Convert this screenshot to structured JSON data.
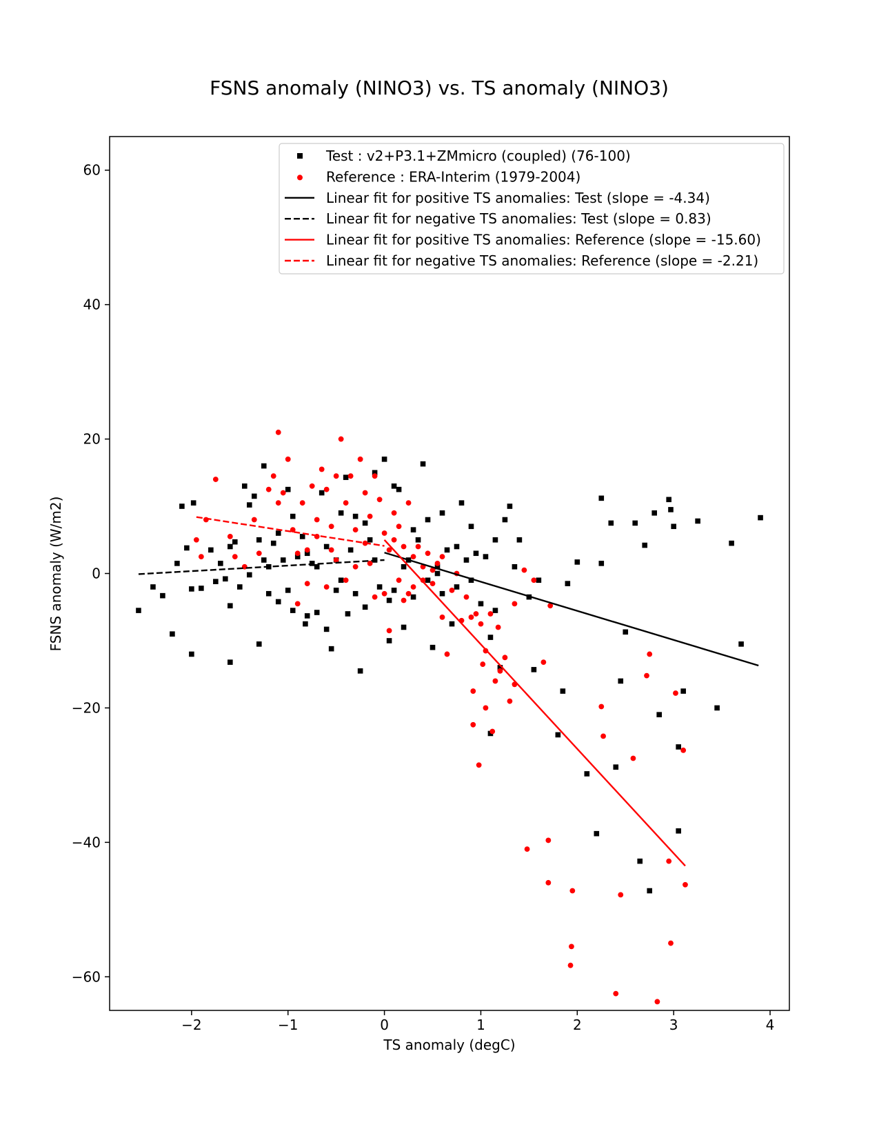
{
  "chart_data": {
    "type": "scatter",
    "title": "FSNS anomaly (NINO3) vs. TS anomaly (NINO3)",
    "xlabel": "TS anomaly (degC)",
    "ylabel": "FSNS anomaly (W/m2)",
    "xlim": [
      -2.85,
      4.2
    ],
    "ylim": [
      -65,
      65
    ],
    "xticks": [
      -2,
      -1,
      0,
      1,
      2,
      3,
      4
    ],
    "xtick_labels": [
      "−2",
      "−1",
      "0",
      "1",
      "2",
      "3",
      "4"
    ],
    "yticks": [
      -60,
      -40,
      -20,
      0,
      20,
      40,
      60
    ],
    "ytick_labels": [
      "−60",
      "−40",
      "−20",
      "0",
      "20",
      "40",
      "60"
    ],
    "grid": false,
    "legend_position": "top-right",
    "series": [
      {
        "name": "Test : v2+P3.1+ZMmicro (coupled) (76-100)",
        "kind": "scatter",
        "marker": "square",
        "color": "#000000",
        "points": [
          [
            -2.55,
            -5.5
          ],
          [
            -2.4,
            -2.0
          ],
          [
            -2.3,
            -3.3
          ],
          [
            -2.2,
            -9.0
          ],
          [
            -2.15,
            1.5
          ],
          [
            -2.1,
            10.0
          ],
          [
            -2.05,
            3.8
          ],
          [
            -2.0,
            -2.3
          ],
          [
            -1.98,
            10.5
          ],
          [
            -2.0,
            -12.0
          ],
          [
            -1.9,
            -2.2
          ],
          [
            -1.8,
            3.5
          ],
          [
            -1.75,
            -1.2
          ],
          [
            -1.7,
            1.5
          ],
          [
            -1.65,
            -0.8
          ],
          [
            -1.6,
            4.0
          ],
          [
            -1.6,
            -13.2
          ],
          [
            -1.55,
            4.7
          ],
          [
            -1.5,
            -2.0
          ],
          [
            -1.45,
            13.0
          ],
          [
            -1.4,
            10.2
          ],
          [
            -1.4,
            -0.2
          ],
          [
            -1.35,
            11.5
          ],
          [
            -1.3,
            5.0
          ],
          [
            -1.25,
            16.0
          ],
          [
            -1.2,
            -3.0
          ],
          [
            -1.15,
            4.5
          ],
          [
            -1.1,
            -4.2
          ],
          [
            -1.05,
            2.0
          ],
          [
            -1.0,
            12.5
          ],
          [
            -1.0,
            -2.5
          ],
          [
            -0.95,
            8.5
          ],
          [
            -0.9,
            2.5
          ],
          [
            -0.85,
            5.5
          ],
          [
            -0.82,
            -7.5
          ],
          [
            -0.8,
            -6.3
          ],
          [
            -0.75,
            1.5
          ],
          [
            -0.7,
            -5.8
          ],
          [
            -0.65,
            12.0
          ],
          [
            -0.6,
            -8.3
          ],
          [
            -0.55,
            -11.2
          ],
          [
            -0.5,
            2.0
          ],
          [
            -0.45,
            -1.0
          ],
          [
            -0.4,
            14.3
          ],
          [
            -0.38,
            -6.0
          ],
          [
            -0.35,
            3.5
          ],
          [
            -0.3,
            -3.0
          ],
          [
            -0.25,
            -14.5
          ],
          [
            -0.2,
            7.5
          ],
          [
            -0.15,
            5.0
          ],
          [
            -0.1,
            15.0
          ],
          [
            -0.05,
            -2.0
          ],
          [
            0.0,
            17.0
          ],
          [
            0.05,
            -4.0
          ],
          [
            0.1,
            13.0
          ],
          [
            0.15,
            12.5
          ],
          [
            0.2,
            -8.0
          ],
          [
            0.25,
            2.0
          ],
          [
            0.3,
            -3.5
          ],
          [
            0.35,
            5.0
          ],
          [
            0.4,
            16.3
          ],
          [
            0.45,
            8.0
          ],
          [
            0.5,
            -11.0
          ],
          [
            0.55,
            1.0
          ],
          [
            0.6,
            9.0
          ],
          [
            0.65,
            3.5
          ],
          [
            0.7,
            -7.5
          ],
          [
            0.75,
            4.0
          ],
          [
            0.8,
            10.5
          ],
          [
            0.85,
            2.0
          ],
          [
            0.9,
            -1.0
          ],
          [
            0.95,
            3.0
          ],
          [
            1.0,
            -4.5
          ],
          [
            1.05,
            2.5
          ],
          [
            1.1,
            -9.5
          ],
          [
            1.1,
            -23.8
          ],
          [
            1.15,
            5.0
          ],
          [
            1.2,
            -14.0
          ],
          [
            1.25,
            8.0
          ],
          [
            1.3,
            10.0
          ],
          [
            1.35,
            1.0
          ],
          [
            1.4,
            5.0
          ],
          [
            1.5,
            -3.5
          ],
          [
            1.55,
            -14.3
          ],
          [
            1.6,
            -1.0
          ],
          [
            1.8,
            -24.0
          ],
          [
            1.85,
            -17.5
          ],
          [
            1.9,
            -1.5
          ],
          [
            2.0,
            1.7
          ],
          [
            2.1,
            -29.8
          ],
          [
            2.2,
            -38.7
          ],
          [
            2.25,
            11.2
          ],
          [
            2.25,
            1.5
          ],
          [
            2.35,
            7.5
          ],
          [
            2.4,
            -28.8
          ],
          [
            2.45,
            -16.0
          ],
          [
            2.5,
            -8.7
          ],
          [
            2.6,
            7.5
          ],
          [
            2.65,
            -42.8
          ],
          [
            2.7,
            4.2
          ],
          [
            2.75,
            -47.2
          ],
          [
            2.8,
            9.0
          ],
          [
            2.85,
            -21.0
          ],
          [
            2.95,
            11.0
          ],
          [
            2.97,
            9.5
          ],
          [
            3.0,
            7.0
          ],
          [
            3.05,
            -25.8
          ],
          [
            3.05,
            -38.3
          ],
          [
            3.1,
            -17.5
          ],
          [
            3.25,
            7.8
          ],
          [
            3.45,
            -20.0
          ],
          [
            3.6,
            4.5
          ],
          [
            3.7,
            -10.5
          ],
          [
            3.9,
            8.3
          ],
          [
            -1.3,
            -10.5
          ],
          [
            -0.95,
            -5.5
          ],
          [
            -1.25,
            2.0
          ],
          [
            -0.6,
            4.0
          ],
          [
            -0.2,
            -5.0
          ],
          [
            0.05,
            -10.0
          ],
          [
            -0.3,
            8.5
          ],
          [
            0.3,
            6.5
          ],
          [
            0.55,
            0.0
          ],
          [
            0.75,
            -2.0
          ],
          [
            1.15,
            -5.5
          ],
          [
            -1.6,
            -4.8
          ],
          [
            -1.1,
            6.0
          ],
          [
            -0.7,
            1.0
          ],
          [
            -0.45,
            9.0
          ],
          [
            0.1,
            -2.5
          ],
          [
            0.2,
            1.0
          ],
          [
            -0.5,
            -2.5
          ],
          [
            -0.1,
            2.0
          ],
          [
            0.45,
            -1.0
          ],
          [
            -1.2,
            1.0
          ],
          [
            -0.8,
            3.0
          ],
          [
            0.6,
            -3.0
          ],
          [
            0.9,
            7.0
          ]
        ]
      },
      {
        "name": "Reference : ERA-Interim (1979-2004)",
        "kind": "scatter",
        "marker": "circle",
        "color": "#ff0000",
        "points": [
          [
            -1.95,
            5.0
          ],
          [
            -1.9,
            2.5
          ],
          [
            -1.85,
            8.0
          ],
          [
            -1.75,
            14.0
          ],
          [
            -1.6,
            5.5
          ],
          [
            -1.55,
            2.5
          ],
          [
            -1.45,
            1.0
          ],
          [
            -1.35,
            8.0
          ],
          [
            -1.2,
            12.5
          ],
          [
            -1.15,
            14.5
          ],
          [
            -1.1,
            21.0
          ],
          [
            -1.1,
            10.5
          ],
          [
            -1.05,
            12.0
          ],
          [
            -1.0,
            17.0
          ],
          [
            -0.95,
            6.5
          ],
          [
            -0.9,
            -4.5
          ],
          [
            -0.85,
            10.5
          ],
          [
            -0.8,
            3.5
          ],
          [
            -0.75,
            13.0
          ],
          [
            -0.7,
            8.0
          ],
          [
            -0.65,
            15.5
          ],
          [
            -0.6,
            12.5
          ],
          [
            -0.55,
            7.0
          ],
          [
            -0.5,
            14.5
          ],
          [
            -0.45,
            20.0
          ],
          [
            -0.4,
            10.5
          ],
          [
            -0.35,
            14.5
          ],
          [
            -0.3,
            6.5
          ],
          [
            -0.25,
            17.0
          ],
          [
            -0.2,
            12.0
          ],
          [
            -0.15,
            8.5
          ],
          [
            -0.1,
            14.5
          ],
          [
            -0.05,
            11.0
          ],
          [
            0.0,
            6.0
          ],
          [
            0.05,
            3.5
          ],
          [
            0.1,
            9.0
          ],
          [
            0.15,
            7.0
          ],
          [
            0.2,
            4.0
          ],
          [
            0.25,
            10.5
          ],
          [
            0.3,
            2.5
          ],
          [
            0.35,
            4.0
          ],
          [
            0.4,
            -1.0
          ],
          [
            0.45,
            3.0
          ],
          [
            0.5,
            -1.5
          ],
          [
            0.55,
            1.5
          ],
          [
            0.6,
            -6.5
          ],
          [
            0.65,
            -12.0
          ],
          [
            0.7,
            -2.5
          ],
          [
            0.75,
            0.0
          ],
          [
            0.8,
            -7.0
          ],
          [
            0.85,
            -3.5
          ],
          [
            0.9,
            -6.5
          ],
          [
            0.92,
            -17.5
          ],
          [
            0.92,
            -22.5
          ],
          [
            0.98,
            -28.5
          ],
          [
            1.0,
            -7.5
          ],
          [
            1.02,
            -13.5
          ],
          [
            1.05,
            -20.0
          ],
          [
            1.05,
            -11.5
          ],
          [
            1.1,
            -6.0
          ],
          [
            1.12,
            -23.5
          ],
          [
            1.15,
            -16.0
          ],
          [
            1.2,
            -14.5
          ],
          [
            1.25,
            -12.5
          ],
          [
            1.3,
            -19.0
          ],
          [
            1.35,
            -16.5
          ],
          [
            1.35,
            -4.5
          ],
          [
            1.45,
            0.5
          ],
          [
            1.48,
            -41.0
          ],
          [
            1.55,
            -1.0
          ],
          [
            1.65,
            -13.2
          ],
          [
            1.7,
            -46.0
          ],
          [
            1.7,
            -39.7
          ],
          [
            1.72,
            -4.8
          ],
          [
            1.93,
            -58.3
          ],
          [
            1.94,
            -55.5
          ],
          [
            1.95,
            -47.2
          ],
          [
            2.25,
            -19.8
          ],
          [
            2.27,
            -24.2
          ],
          [
            2.4,
            -62.5
          ],
          [
            2.45,
            -47.8
          ],
          [
            2.58,
            -27.5
          ],
          [
            2.72,
            -15.2
          ],
          [
            2.75,
            -12.0
          ],
          [
            2.83,
            -63.7
          ],
          [
            2.95,
            -42.8
          ],
          [
            2.97,
            -55.0
          ],
          [
            3.02,
            -17.8
          ],
          [
            3.1,
            -26.3
          ],
          [
            3.12,
            -46.3
          ],
          [
            -0.9,
            3.0
          ],
          [
            -0.6,
            -2.0
          ],
          [
            -0.3,
            1.0
          ],
          [
            0.0,
            -3.0
          ],
          [
            0.15,
            -1.0
          ],
          [
            0.3,
            -2.0
          ],
          [
            -0.5,
            2.0
          ],
          [
            -0.2,
            4.5
          ],
          [
            0.1,
            5.0
          ],
          [
            -0.7,
            5.5
          ],
          [
            0.4,
            1.0
          ],
          [
            0.6,
            2.5
          ],
          [
            -0.4,
            -1.0
          ],
          [
            -0.1,
            -3.5
          ],
          [
            0.2,
            -4.0
          ],
          [
            0.5,
            0.5
          ],
          [
            -1.3,
            3.0
          ],
          [
            -0.8,
            -1.5
          ],
          [
            0.05,
            -8.5
          ],
          [
            0.25,
            -3.0
          ],
          [
            -0.15,
            1.5
          ],
          [
            1.18,
            -8.0
          ],
          [
            0.95,
            -6.0
          ],
          [
            -0.55,
            3.5
          ]
        ]
      },
      {
        "name": "Linear fit for positive TS anomalies: Test (slope = -4.34)",
        "kind": "line",
        "dash": "solid",
        "color": "#000000",
        "points": [
          [
            0.0,
            3.1
          ],
          [
            3.88,
            -13.7
          ]
        ]
      },
      {
        "name": "Linear fit for negative TS anomalies: Test (slope = 0.83)",
        "kind": "line",
        "dash": "dashed",
        "color": "#000000",
        "points": [
          [
            -2.55,
            -0.1
          ],
          [
            0.0,
            2.0
          ]
        ]
      },
      {
        "name": "Linear fit for positive TS anomalies: Reference (slope = -15.60)",
        "kind": "line",
        "dash": "solid",
        "color": "#ff0000",
        "points": [
          [
            0.0,
            5.0
          ],
          [
            3.12,
            -43.5
          ]
        ]
      },
      {
        "name": "Linear fit for negative TS anomalies: Reference (slope = -2.21)",
        "kind": "line",
        "dash": "dashed",
        "color": "#ff0000",
        "points": [
          [
            -1.95,
            8.4
          ],
          [
            0.0,
            4.1
          ]
        ]
      }
    ]
  }
}
